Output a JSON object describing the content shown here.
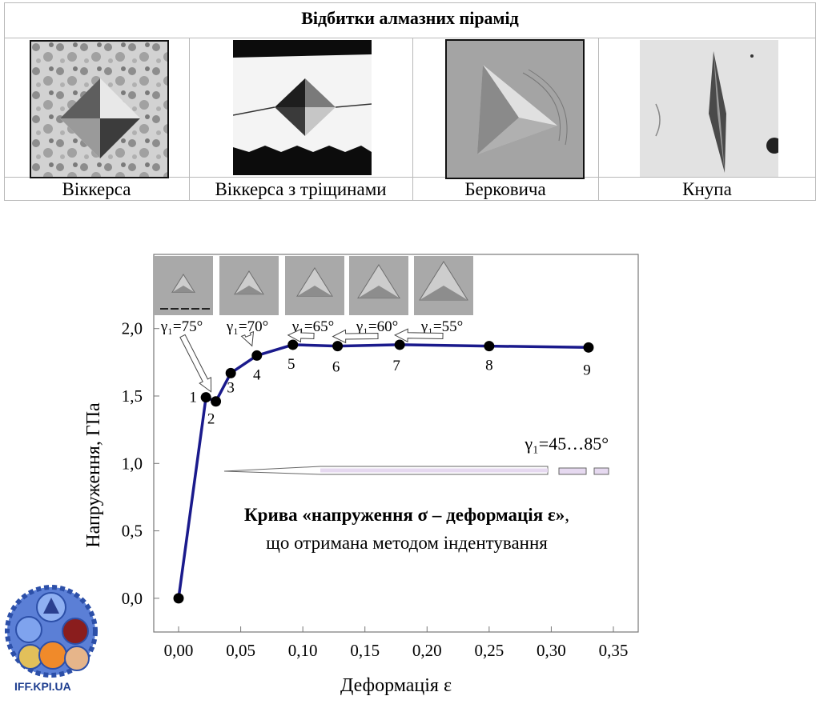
{
  "table": {
    "title": "Відбитки алмазних пірамід",
    "captions": [
      "Віккерса",
      "Віккерса з тріщинами",
      "Берковича",
      "Кнупа"
    ]
  },
  "chart_data": {
    "type": "line",
    "xlabel": "Деформація ε",
    "ylabel": "Напруження, ГПа",
    "xlim": [
      -0.02,
      0.37
    ],
    "ylim": [
      -0.25,
      2.55
    ],
    "x_ticks": [
      "0,00",
      "0,05",
      "0,10",
      "0,15",
      "0,20",
      "0,25",
      "0,30",
      "0,35"
    ],
    "y_ticks": [
      "0,0",
      "0,5",
      "1,0",
      "1,5",
      "2,0"
    ],
    "series": [
      {
        "color": "#1a1a8c",
        "points": [
          {
            "x": 0.0,
            "y": 0.0,
            "label": ""
          },
          {
            "x": 0.022,
            "y": 1.49,
            "label": "1"
          },
          {
            "x": 0.03,
            "y": 1.46,
            "label": "2"
          },
          {
            "x": 0.042,
            "y": 1.67,
            "label": "3"
          },
          {
            "x": 0.063,
            "y": 1.8,
            "label": "4"
          },
          {
            "x": 0.092,
            "y": 1.88,
            "label": "5"
          },
          {
            "x": 0.128,
            "y": 1.87,
            "label": "6"
          },
          {
            "x": 0.178,
            "y": 1.88,
            "label": "7"
          },
          {
            "x": 0.25,
            "y": 1.87,
            "label": "8"
          },
          {
            "x": 0.33,
            "y": 1.86,
            "label": "9"
          }
        ]
      }
    ],
    "angle_labels": [
      "γ₁=75°",
      "γ₁=70°",
      "γ₁=65°",
      "γ₁=60°",
      "γ₁=55°"
    ],
    "range_label": "γ₁=45…85°",
    "annotation_line1": "Крива «напруження σ – деформація ε»,",
    "annotation_line2": "що отримана методом індентування",
    "grid": false
  },
  "logo": {
    "text": "IFF.KPI.UA"
  }
}
